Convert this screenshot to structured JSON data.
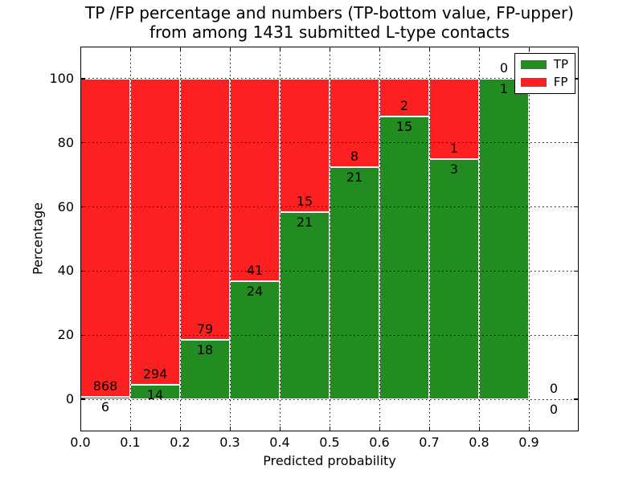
{
  "title": {
    "line1": "TP /FP percentage and numbers (TP-bottom value, FP-upper)",
    "line2": "from among 1431 submitted L-type contacts"
  },
  "axes": {
    "xlabel": "Predicted probability",
    "ylabel": "Percentage"
  },
  "legend": {
    "items": [
      {
        "label": "TP",
        "color": "#228b22"
      },
      {
        "label": "FP",
        "color": "#fd2020"
      }
    ]
  },
  "chart_data": {
    "type": "bar",
    "stacked": true,
    "title": "TP /FP percentage and numbers (TP-bottom value, FP-upper)\nfrom among 1431 submitted L-type contacts",
    "xlabel": "Predicted probability",
    "ylabel": "Percentage",
    "total_submitted": 1431,
    "contact_type": "L-type",
    "xlim": [
      0.0,
      1.0
    ],
    "ylim": [
      -10,
      110
    ],
    "bin_width": 0.1,
    "xticks": [
      "0.0",
      "0.1",
      "0.2",
      "0.3",
      "0.4",
      "0.5",
      "0.6",
      "0.7",
      "0.8",
      "0.9"
    ],
    "yticks": [
      0,
      20,
      40,
      60,
      80,
      100
    ],
    "grid": "dotted",
    "legend_position": "upper right",
    "categories": [
      "0.0-0.1",
      "0.1-0.2",
      "0.2-0.3",
      "0.3-0.4",
      "0.4-0.5",
      "0.5-0.6",
      "0.6-0.7",
      "0.7-0.8",
      "0.8-0.9",
      "0.9-1.0"
    ],
    "series": [
      {
        "name": "TP",
        "color": "#228b22",
        "counts": [
          6,
          14,
          18,
          24,
          21,
          21,
          15,
          3,
          1,
          0
        ],
        "pct": [
          0.69,
          4.55,
          18.56,
          36.92,
          58.33,
          72.41,
          88.24,
          75.0,
          100.0,
          0.0
        ]
      },
      {
        "name": "FP",
        "color": "#fd2020",
        "counts": [
          868,
          294,
          79,
          41,
          15,
          8,
          2,
          1,
          0,
          0
        ],
        "pct": [
          99.31,
          95.45,
          81.44,
          63.08,
          41.67,
          27.59,
          11.76,
          25.0,
          0.0,
          0.0
        ]
      }
    ]
  }
}
